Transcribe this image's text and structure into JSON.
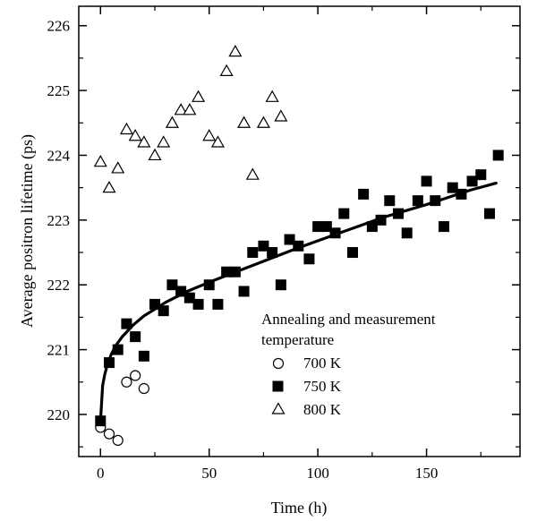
{
  "chart_data": {
    "type": "scatter",
    "title": "",
    "xlabel": "Time (h)",
    "ylabel": "Average positron lifetime (ps)",
    "xlim": [
      -10,
      193
    ],
    "ylim": [
      219.35,
      226.3
    ],
    "xticks": [
      0,
      50,
      100,
      150
    ],
    "xtick_labels": [
      "0",
      "50",
      "100",
      "150"
    ],
    "yticks": [
      220,
      221,
      222,
      223,
      224,
      225,
      226
    ],
    "ytick_labels": [
      "220",
      "221",
      "222",
      "223",
      "224",
      "225",
      "226"
    ],
    "grid": false,
    "legend": {
      "title_line1": "Annealing and measurement",
      "title_line2": "temperature",
      "placement": "center-right"
    },
    "series": [
      {
        "name": "700 K",
        "marker": "open-circle",
        "points": [
          [
            0,
            219.8
          ],
          [
            4,
            219.7
          ],
          [
            8,
            219.6
          ],
          [
            12,
            220.5
          ],
          [
            16,
            220.6
          ],
          [
            20,
            220.4
          ]
        ]
      },
      {
        "name": "750 K",
        "marker": "filled-square",
        "points": [
          [
            0,
            219.9
          ],
          [
            4,
            220.8
          ],
          [
            8,
            221.0
          ],
          [
            12,
            221.4
          ],
          [
            16,
            221.2
          ],
          [
            20,
            220.9
          ],
          [
            25,
            221.7
          ],
          [
            29,
            221.6
          ],
          [
            33,
            222.0
          ],
          [
            37,
            221.9
          ],
          [
            41,
            221.8
          ],
          [
            45,
            221.7
          ],
          [
            50,
            222.0
          ],
          [
            54,
            221.7
          ],
          [
            58,
            222.2
          ],
          [
            62,
            222.2
          ],
          [
            66,
            221.9
          ],
          [
            70,
            222.5
          ],
          [
            75,
            222.6
          ],
          [
            79,
            222.5
          ],
          [
            83,
            222.0
          ],
          [
            87,
            222.7
          ],
          [
            91,
            222.6
          ],
          [
            96,
            222.4
          ],
          [
            100,
            222.9
          ],
          [
            104,
            222.9
          ],
          [
            108,
            222.8
          ],
          [
            112,
            223.1
          ],
          [
            116,
            222.5
          ],
          [
            121,
            223.4
          ],
          [
            125,
            222.9
          ],
          [
            129,
            223.0
          ],
          [
            133,
            223.3
          ],
          [
            137,
            223.1
          ],
          [
            141,
            222.8
          ],
          [
            146,
            223.3
          ],
          [
            150,
            223.6
          ],
          [
            154,
            223.3
          ],
          [
            158,
            222.9
          ],
          [
            162,
            223.5
          ],
          [
            166,
            223.4
          ],
          [
            171,
            223.6
          ],
          [
            175,
            223.7
          ],
          [
            179,
            223.1
          ],
          [
            183,
            224.0
          ]
        ]
      },
      {
        "name": "800 K",
        "marker": "open-triangle",
        "points": [
          [
            0,
            223.9
          ],
          [
            4,
            223.5
          ],
          [
            8,
            223.8
          ],
          [
            12,
            224.4
          ],
          [
            16,
            224.3
          ],
          [
            20,
            224.2
          ],
          [
            25,
            224.0
          ],
          [
            29,
            224.2
          ],
          [
            33,
            224.5
          ],
          [
            37,
            224.7
          ],
          [
            41,
            224.7
          ],
          [
            45,
            224.9
          ],
          [
            50,
            224.3
          ],
          [
            54,
            224.2
          ],
          [
            58,
            225.3
          ],
          [
            62,
            225.6
          ],
          [
            66,
            224.5
          ],
          [
            70,
            223.7
          ],
          [
            75,
            224.5
          ],
          [
            79,
            224.9
          ],
          [
            83,
            224.6
          ]
        ]
      }
    ],
    "fit_line": {
      "series": "750 K",
      "points": [
        [
          0,
          219.9
        ],
        [
          1,
          220.45
        ],
        [
          2,
          220.62
        ],
        [
          3,
          220.75
        ],
        [
          5,
          220.93
        ],
        [
          7,
          221.06
        ],
        [
          10,
          221.2
        ],
        [
          15,
          221.38
        ],
        [
          20,
          221.52
        ],
        [
          30,
          221.73
        ],
        [
          40,
          221.9
        ],
        [
          50,
          222.04
        ],
        [
          60,
          222.17
        ],
        [
          70,
          222.3
        ],
        [
          80,
          222.43
        ],
        [
          90,
          222.56
        ],
        [
          100,
          222.68
        ],
        [
          110,
          222.8
        ],
        [
          120,
          222.92
        ],
        [
          130,
          223.04
        ],
        [
          140,
          223.14
        ],
        [
          150,
          223.24
        ],
        [
          160,
          223.35
        ],
        [
          170,
          223.46
        ],
        [
          182,
          223.57
        ]
      ]
    }
  }
}
